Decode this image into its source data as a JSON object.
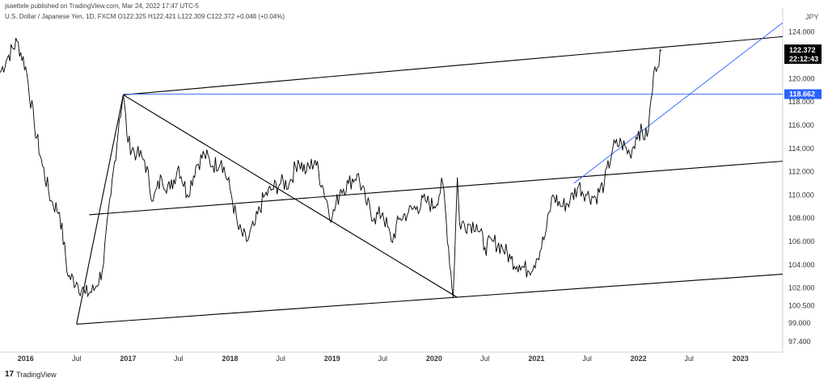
{
  "header": {
    "publisher": "jsaettele published on TradingView.com, Mar 24, 2022 17:47 UTC-5",
    "symbol": "U.S. Dollar / Japanese Yen, 1D, FXCM  O122.325  H122.421  L122.309  C122.372  +0.048 (+0.04%)"
  },
  "footer": {
    "logo": "17",
    "brand": "TradingView"
  },
  "colors": {
    "price": "#000000",
    "trendline": "#000000",
    "blue_line": "#2962ff",
    "blue_tag": "#2962ff",
    "price_tag": "#000000",
    "axis_text": "#333333"
  },
  "chart_data": {
    "type": "line",
    "title": "",
    "xlabel": "",
    "ylabel": "",
    "currency_label": "JPY",
    "ylim": [
      96.5,
      125.5
    ],
    "xlim": [
      "2015-10-01",
      "2023-06-01"
    ],
    "y_ticks": [
      "124.000",
      "122.000",
      "120.000",
      "118.000",
      "116.000",
      "114.000",
      "112.000",
      "110.000",
      "108.000",
      "106.000",
      "104.000",
      "102.000",
      "100.500",
      "99.000",
      "97.400"
    ],
    "x_ticks": [
      {
        "label": "2016",
        "date": "2016-01-01",
        "year": true
      },
      {
        "label": "Jul",
        "date": "2016-07-01",
        "year": false
      },
      {
        "label": "2017",
        "date": "2017-01-01",
        "year": true
      },
      {
        "label": "Jul",
        "date": "2017-07-01",
        "year": false
      },
      {
        "label": "2018",
        "date": "2018-01-01",
        "year": true
      },
      {
        "label": "Jul",
        "date": "2018-07-01",
        "year": false
      },
      {
        "label": "2019",
        "date": "2019-01-01",
        "year": true
      },
      {
        "label": "Jul",
        "date": "2019-07-01",
        "year": false
      },
      {
        "label": "2020",
        "date": "2020-01-01",
        "year": true
      },
      {
        "label": "Jul",
        "date": "2020-07-01",
        "year": false
      },
      {
        "label": "2021",
        "date": "2021-01-01",
        "year": true
      },
      {
        "label": "Jul",
        "date": "2021-07-01",
        "year": false
      },
      {
        "label": "2022",
        "date": "2022-01-01",
        "year": true
      },
      {
        "label": "Jul",
        "date": "2022-07-01",
        "year": false
      },
      {
        "label": "2023",
        "date": "2023-01-01",
        "year": true
      }
    ],
    "series": [
      {
        "x": [
          "2015-10-01",
          "2015-11-01",
          "2015-12-01",
          "2016-01-01",
          "2016-02-01",
          "2016-03-01",
          "2016-04-01",
          "2016-05-01",
          "2016-06-01",
          "2016-07-01",
          "2016-08-01",
          "2016-09-01",
          "2016-10-01",
          "2016-11-01",
          "2016-12-01",
          "2016-12-15",
          "2017-01-01",
          "2017-02-01",
          "2017-03-01",
          "2017-04-01",
          "2017-05-01",
          "2017-06-01",
          "2017-07-01",
          "2017-08-01",
          "2017-09-01",
          "2017-10-01",
          "2017-11-01",
          "2017-12-01",
          "2018-01-01",
          "2018-02-01",
          "2018-03-01",
          "2018-04-01",
          "2018-05-01",
          "2018-06-01",
          "2018-07-01",
          "2018-08-01",
          "2018-09-01",
          "2018-10-01",
          "2018-11-01",
          "2018-12-01",
          "2019-01-01",
          "2019-02-01",
          "2019-03-01",
          "2019-04-01",
          "2019-05-01",
          "2019-06-01",
          "2019-07-01",
          "2019-08-01",
          "2019-09-01",
          "2019-10-01",
          "2019-11-01",
          "2019-12-01",
          "2020-01-01",
          "2020-02-01",
          "2020-03-09",
          "2020-03-24",
          "2020-04-01",
          "2020-05-01",
          "2020-06-01",
          "2020-07-01",
          "2020-08-01",
          "2020-09-01",
          "2020-10-01",
          "2020-11-01",
          "2020-12-01",
          "2021-01-01",
          "2021-02-01",
          "2021-03-01",
          "2021-04-01",
          "2021-05-01",
          "2021-06-01",
          "2021-07-01",
          "2021-08-01",
          "2021-09-01",
          "2021-10-01",
          "2021-11-01",
          "2021-12-01",
          "2022-01-01",
          "2022-02-01",
          "2022-03-01",
          "2022-03-24"
        ],
        "y": [
          120.5,
          122.0,
          123.2,
          121.0,
          116.0,
          112.5,
          109.5,
          108.5,
          103.0,
          102.5,
          101.5,
          101.8,
          103.5,
          110.0,
          116.5,
          118.6,
          114.5,
          113.5,
          113.0,
          109.5,
          111.5,
          110.5,
          112.5,
          110.0,
          112.5,
          113.5,
          112.5,
          113.0,
          110.5,
          107.0,
          106.0,
          107.5,
          109.8,
          110.5,
          111.0,
          111.0,
          113.0,
          112.0,
          113.0,
          110.5,
          108.0,
          110.5,
          111.0,
          111.8,
          109.5,
          108.0,
          108.5,
          106.0,
          108.0,
          108.5,
          109.0,
          109.5,
          109.0,
          111.0,
          101.2,
          111.5,
          107.5,
          107.5,
          107.5,
          105.5,
          106.0,
          105.5,
          104.5,
          104.0,
          103.5,
          104.5,
          106.5,
          110.0,
          109.0,
          109.5,
          110.8,
          110.0,
          109.8,
          111.0,
          114.0,
          114.5,
          113.5,
          115.5,
          115.0,
          121.0,
          122.37
        ]
      }
    ],
    "annotations": {
      "price_tag": {
        "value": 122.372,
        "label": "122.372",
        "countdown": "22:12:43"
      },
      "level_tag": {
        "value": 118.662,
        "label": "118.662"
      },
      "horizontal_line": {
        "from": "2016-12-15",
        "value": 118.662
      },
      "lines": [
        {
          "from": [
            "2016-07-01",
            98.9
          ],
          "to": [
            "2023-06-01",
            103.2
          ]
        },
        {
          "from": [
            "2016-07-01",
            98.9
          ],
          "to": [
            "2016-12-15",
            118.6
          ]
        },
        {
          "from": [
            "2016-12-15",
            118.6
          ],
          "to": [
            "2023-06-01",
            123.6
          ]
        },
        {
          "from": [
            "2016-12-15",
            118.6
          ],
          "to": [
            "2020-03-24",
            101.2
          ]
        },
        {
          "from": [
            "2016-08-15",
            108.3
          ],
          "to": [
            "2023-06-01",
            112.9
          ]
        }
      ],
      "blue_trendline": {
        "from": [
          "2021-05-15",
          111.0
        ],
        "to": [
          "2023-06-01",
          124.8
        ]
      }
    }
  }
}
